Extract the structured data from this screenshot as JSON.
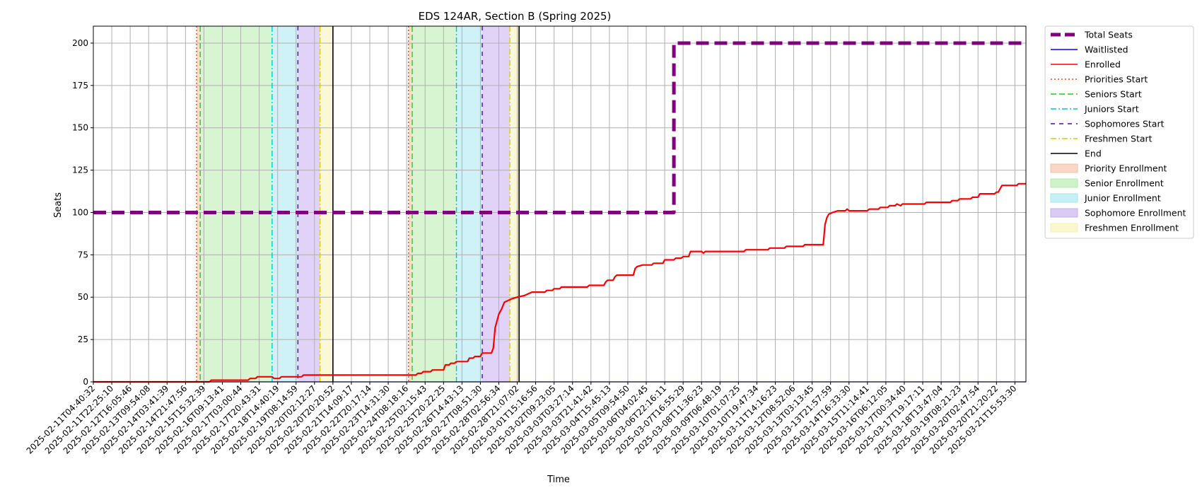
{
  "chart_data": {
    "type": "line",
    "title": "EDS 124AR, Section B (Spring 2025)",
    "xlabel": "Time",
    "ylabel": "Seats",
    "ylim": [
      0,
      210
    ],
    "yticks": [
      0,
      25,
      50,
      75,
      100,
      125,
      150,
      175,
      200
    ],
    "grid": true,
    "legend_position": "outside right, top",
    "x_tick_labels": [
      "2025-02-11T04:40:32",
      "2025-02-11T22:25:10",
      "2025-02-12T16:05:46",
      "2025-02-13T09:54:08",
      "2025-02-14T03:41:39",
      "2025-02-14T21:47:56",
      "2025-02-15T15:32:39",
      "2025-02-16T09:13:41",
      "2025-02-17T03:00:44",
      "2025-02-17T20:43:31",
      "2025-02-18T14:40:19",
      "2025-02-19T08:14:59",
      "2025-02-20T02:12:27",
      "2025-02-20T20:20:52",
      "2025-02-21T14:09:17",
      "2025-02-22T20:17:14",
      "2025-02-23T14:31:30",
      "2025-02-24T08:18:16",
      "2025-02-25T02:15:43",
      "2025-02-25T20:22:25",
      "2025-02-26T14:43:13",
      "2025-02-27T08:51:30",
      "2025-02-28T02:56:34",
      "2025-02-28T21:07:02",
      "2025-03-01T15:16:56",
      "2025-03-02T09:23:05",
      "2025-03-03T03:27:14",
      "2025-03-03T21:41:42",
      "2025-03-04T15:45:13",
      "2025-03-05T09:54:50",
      "2025-03-06T04:02:45",
      "2025-03-06T22:16:11",
      "2025-03-07T16:55:29",
      "2025-03-08T11:36:23",
      "2025-03-09T06:48:19",
      "2025-03-10T01:07:25",
      "2025-03-10T19:47:34",
      "2025-03-11T14:16:23",
      "2025-03-12T08:52:06",
      "2025-03-13T03:13:45",
      "2025-03-13T21:57:59",
      "2025-03-14T16:33:30",
      "2025-03-15T11:14:41",
      "2025-03-16T06:12:05",
      "2025-03-17T00:34:40",
      "2025-03-17T19:17:11",
      "2025-03-18T13:47:04",
      "2025-03-19T08:21:23",
      "2025-03-20T02:47:54",
      "2025-03-20T21:20:22",
      "2025-03-21T15:53:30"
    ],
    "x_index_range": [
      0,
      50.6
    ],
    "series": [
      {
        "name": "Total Seats",
        "style": "dashed",
        "color": "#800080",
        "points": [
          [
            0,
            100
          ],
          [
            31.5,
            100
          ],
          [
            31.5,
            200
          ],
          [
            50.6,
            200
          ]
        ]
      },
      {
        "name": "Waitlisted",
        "style": "solid",
        "color": "#0000ff",
        "points": [
          [
            0,
            0
          ],
          [
            50.6,
            0
          ]
        ]
      },
      {
        "name": "Enrolled",
        "style": "solid",
        "color": "#ff0000",
        "points": [
          [
            0,
            0
          ],
          [
            6.3,
            0
          ],
          [
            6.4,
            1
          ],
          [
            8.4,
            1
          ],
          [
            8.5,
            2
          ],
          [
            8.8,
            2
          ],
          [
            8.9,
            3
          ],
          [
            9.7,
            3
          ],
          [
            9.8,
            2
          ],
          [
            10.1,
            2
          ],
          [
            10.2,
            3
          ],
          [
            11.3,
            3
          ],
          [
            11.4,
            4
          ],
          [
            17.5,
            4
          ],
          [
            17.6,
            5
          ],
          [
            17.8,
            5
          ],
          [
            17.9,
            6
          ],
          [
            18.3,
            6
          ],
          [
            18.4,
            7
          ],
          [
            19.0,
            7
          ],
          [
            19.1,
            10
          ],
          [
            19.3,
            10
          ],
          [
            19.4,
            11
          ],
          [
            19.6,
            11
          ],
          [
            19.7,
            12
          ],
          [
            20.3,
            12
          ],
          [
            20.4,
            14
          ],
          [
            20.6,
            14
          ],
          [
            20.7,
            15
          ],
          [
            21.0,
            15
          ],
          [
            21.1,
            17
          ],
          [
            21.6,
            17
          ],
          [
            21.7,
            20
          ],
          [
            21.8,
            32
          ],
          [
            21.9,
            36
          ],
          [
            22.0,
            40
          ],
          [
            22.15,
            43
          ],
          [
            22.3,
            47
          ],
          [
            22.5,
            48
          ],
          [
            22.7,
            49
          ],
          [
            23.0,
            50
          ],
          [
            23.4,
            51
          ],
          [
            23.6,
            52
          ],
          [
            23.8,
            53
          ],
          [
            24.5,
            53
          ],
          [
            24.6,
            54
          ],
          [
            24.9,
            54
          ],
          [
            25.0,
            55
          ],
          [
            25.3,
            55
          ],
          [
            25.4,
            56
          ],
          [
            26.8,
            56
          ],
          [
            26.9,
            57
          ],
          [
            27.7,
            57
          ],
          [
            27.8,
            59
          ],
          [
            27.9,
            60
          ],
          [
            28.2,
            60
          ],
          [
            28.3,
            62
          ],
          [
            28.4,
            63
          ],
          [
            29.3,
            63
          ],
          [
            29.4,
            67
          ],
          [
            29.5,
            68
          ],
          [
            29.8,
            69
          ],
          [
            30.3,
            69
          ],
          [
            30.4,
            70
          ],
          [
            30.9,
            70
          ],
          [
            31.0,
            72
          ],
          [
            31.5,
            72
          ],
          [
            31.6,
            73
          ],
          [
            31.9,
            73
          ],
          [
            32.0,
            74
          ],
          [
            32.3,
            74
          ],
          [
            32.4,
            77
          ],
          [
            33.0,
            77
          ],
          [
            33.1,
            76
          ],
          [
            33.2,
            77
          ],
          [
            35.3,
            77
          ],
          [
            35.4,
            78
          ],
          [
            36.6,
            78
          ],
          [
            36.7,
            79
          ],
          [
            37.5,
            79
          ],
          [
            37.6,
            80
          ],
          [
            38.5,
            80
          ],
          [
            38.6,
            81
          ],
          [
            39.6,
            81
          ],
          [
            39.7,
            93
          ],
          [
            39.8,
            97
          ],
          [
            39.9,
            99
          ],
          [
            40.1,
            100
          ],
          [
            40.4,
            101
          ],
          [
            40.8,
            101
          ],
          [
            40.9,
            102
          ],
          [
            41.0,
            101
          ],
          [
            42.0,
            101
          ],
          [
            42.1,
            102
          ],
          [
            42.6,
            102
          ],
          [
            42.7,
            103
          ],
          [
            43.1,
            103
          ],
          [
            43.2,
            104
          ],
          [
            43.5,
            104
          ],
          [
            43.6,
            105
          ],
          [
            43.8,
            104
          ],
          [
            43.9,
            105
          ],
          [
            45.1,
            105
          ],
          [
            45.2,
            106
          ],
          [
            46.5,
            106
          ],
          [
            46.6,
            107
          ],
          [
            46.9,
            107
          ],
          [
            47.0,
            108
          ],
          [
            47.6,
            108
          ],
          [
            47.7,
            109
          ],
          [
            48.0,
            109
          ],
          [
            48.1,
            111
          ],
          [
            48.9,
            111
          ],
          [
            49.0,
            112
          ],
          [
            49.1,
            112
          ],
          [
            49.2,
            114
          ],
          [
            49.3,
            116
          ],
          [
            50.1,
            116
          ],
          [
            50.2,
            117
          ],
          [
            50.6,
            117
          ]
        ]
      }
    ],
    "vertical_lines": [
      {
        "name": "Priorities Start",
        "color": "#ff4500",
        "style": "dotted",
        "x": [
          5.6,
          17.1
        ]
      },
      {
        "name": "Seniors Start",
        "color": "#22cc22",
        "style": "dashed",
        "x": [
          5.8,
          17.3
        ]
      },
      {
        "name": "Juniors Start",
        "color": "#00c8c8",
        "style": "dashdot",
        "x": [
          9.7,
          19.7
        ]
      },
      {
        "name": "Sophomores Start",
        "color": "#5000d0",
        "style": "loosedash",
        "x": [
          11.1,
          21.1
        ]
      },
      {
        "name": "Freshmen Start",
        "color": "#e0cc00",
        "style": "dashdot",
        "x": [
          12.3,
          22.6
        ]
      },
      {
        "name": "End",
        "color": "#000000",
        "style": "solid",
        "x": [
          13.0,
          23.1
        ]
      }
    ],
    "shaded_regions": [
      {
        "name": "Priority Enrollment",
        "color": "#f5c2a8",
        "ranges": [
          [
            5.6,
            5.8
          ],
          [
            17.1,
            17.3
          ]
        ]
      },
      {
        "name": "Senior Enrollment",
        "color": "#b6edaa",
        "ranges": [
          [
            5.8,
            9.7
          ],
          [
            17.3,
            19.7
          ]
        ]
      },
      {
        "name": "Junior Enrollment",
        "color": "#a6e8f0",
        "ranges": [
          [
            9.7,
            11.1
          ],
          [
            19.7,
            21.1
          ]
        ]
      },
      {
        "name": "Sophomore Enrollment",
        "color": "#c6aff0",
        "ranges": [
          [
            11.1,
            12.3
          ],
          [
            21.1,
            22.6
          ]
        ]
      },
      {
        "name": "Freshmen Enrollment",
        "color": "#f5f3b4",
        "ranges": [
          [
            12.3,
            13.0
          ],
          [
            22.6,
            23.1
          ]
        ]
      }
    ],
    "legend": [
      {
        "label": "Total Seats",
        "kind": "line",
        "color": "#800080",
        "style": "thick"
      },
      {
        "label": "Waitlisted",
        "kind": "line",
        "color": "#0000ff",
        "style": "solid"
      },
      {
        "label": "Enrolled",
        "kind": "line",
        "color": "#ff0000",
        "style": "solid"
      },
      {
        "label": "Priorities Start",
        "kind": "line",
        "color": "#ff4500",
        "style": "dotted"
      },
      {
        "label": "Seniors Start",
        "kind": "line",
        "color": "#22cc22",
        "style": "dashed"
      },
      {
        "label": "Juniors Start",
        "kind": "line",
        "color": "#00c8c8",
        "style": "dashdot"
      },
      {
        "label": "Sophomores Start",
        "kind": "line",
        "color": "#5000d0",
        "style": "loosedash"
      },
      {
        "label": "Freshmen Start",
        "kind": "line",
        "color": "#e0cc00",
        "style": "dashdot"
      },
      {
        "label": "End",
        "kind": "line",
        "color": "#000000",
        "style": "solid"
      },
      {
        "label": "Priority Enrollment",
        "kind": "patch",
        "color": "#f5c2a8"
      },
      {
        "label": "Senior Enrollment",
        "kind": "patch",
        "color": "#b6edaa"
      },
      {
        "label": "Junior Enrollment",
        "kind": "patch",
        "color": "#a6e8f0"
      },
      {
        "label": "Sophomore Enrollment",
        "kind": "patch",
        "color": "#c6aff0"
      },
      {
        "label": "Freshmen Enrollment",
        "kind": "patch",
        "color": "#f5f3b4"
      }
    ]
  }
}
